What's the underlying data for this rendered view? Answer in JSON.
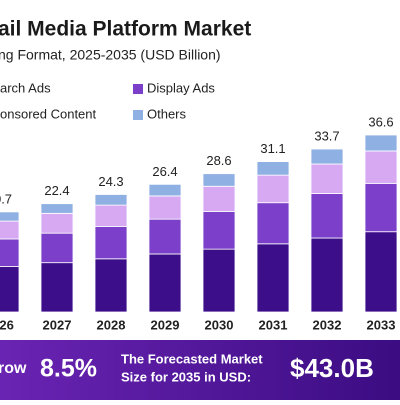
{
  "chart_data": {
    "type": "stacked_bar",
    "title": "ail Media Platform Market",
    "subtitle": "ng Format, 2025-2035 (USD Billion)",
    "categories": [
      "026",
      "2027",
      "2028",
      "2029",
      "2030",
      "2031",
      "2032",
      "2033"
    ],
    "series": [
      {
        "name": "arch Ads",
        "color": "#3d0e8a",
        "values": [
          9.4,
          10.2,
          11.0,
          12.0,
          13.0,
          14.1,
          15.3,
          16.6
        ]
      },
      {
        "name": "Display Ads",
        "color": "#7b3fc9",
        "values": [
          5.7,
          6.1,
          6.7,
          7.2,
          7.8,
          8.5,
          9.2,
          10.0
        ]
      },
      {
        "name": "onsored Content",
        "color": "#d6a9f2",
        "values": [
          3.7,
          4.1,
          4.4,
          4.8,
          5.2,
          5.7,
          6.1,
          6.7
        ]
      },
      {
        "name": "Others",
        "color": "#8fb0e2",
        "values": [
          1.9,
          2.0,
          2.2,
          2.4,
          2.6,
          2.8,
          3.1,
          3.3
        ]
      }
    ],
    "value_labels": [
      "0.7",
      "22.4",
      "24.3",
      "26.4",
      "28.6",
      "31.1",
      "33.7",
      "36.6"
    ],
    "banner": {
      "growth_label": "row",
      "growth_value": "8.5%",
      "forecast_line1": "The Forecasted Market",
      "forecast_line2": "Size for 2035 in USD:",
      "forecast_value": "$43.0B"
    }
  }
}
